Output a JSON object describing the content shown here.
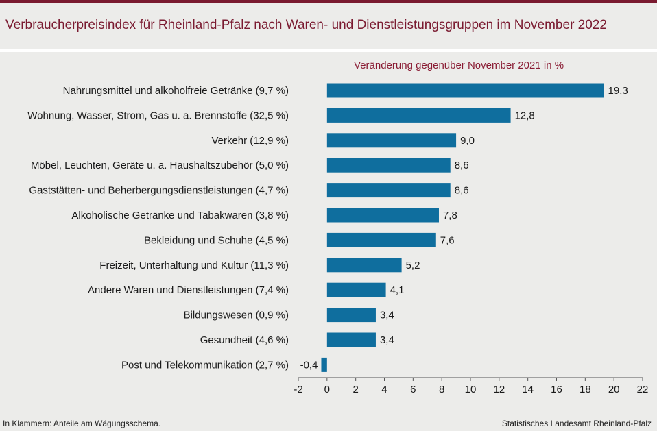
{
  "header": {
    "title": "Verbraucherpreisindex für Rheinland-Pfalz nach Waren- und Dienstleistungsgruppen im November 2022"
  },
  "footer": {
    "note": "In Klammern: Anteile am Wägungsschema.",
    "source": "Statistisches Landesamt Rheinland-Pfalz"
  },
  "colors": {
    "bar": "#0f6e9e",
    "title": "#7a1a30",
    "subtitle": "#8a1c34",
    "axis": "#555555"
  },
  "chart_data": {
    "type": "bar",
    "orientation": "horizontal",
    "subtitle": "Veränderung gegenüber November 2021 in %",
    "xlim": [
      -2,
      22
    ],
    "xticks": [
      -2,
      0,
      2,
      4,
      6,
      8,
      10,
      12,
      14,
      16,
      18,
      20,
      22
    ],
    "categories": [
      "Nahrungsmittel und alkoholfreie Getränke (9,7 %)",
      "Wohnung, Wasser, Strom, Gas u. a. Brennstoffe (32,5 %)",
      "Verkehr (12,9 %)",
      "Möbel, Leuchten, Geräte u. a. Haushaltszubehör  (5,0 %)",
      "Gaststätten- und Beherbergungsdienstleistungen (4,7 %)",
      "Alkoholische Getränke und Tabakwaren (3,8 %)",
      "Bekleidung und Schuhe (4,5 %)",
      "Freizeit, Unterhaltung und Kultur (11,3 %)",
      "Andere Waren und Dienstleistungen (7,4 %)",
      "Bildungswesen (0,9 %)",
      "Gesundheit (4,6 %)",
      "Post und Telekommunikation (2,7 %)"
    ],
    "values": [
      19.3,
      12.8,
      9.0,
      8.6,
      8.6,
      7.8,
      7.6,
      5.2,
      4.1,
      3.4,
      3.4,
      -0.4
    ],
    "value_labels": [
      "19,3",
      "12,8",
      "9,0",
      "8,6",
      "8,6",
      "7,8",
      "7,6",
      "5,2",
      "4,1",
      "3,4",
      "3,4",
      "-0,4"
    ]
  }
}
